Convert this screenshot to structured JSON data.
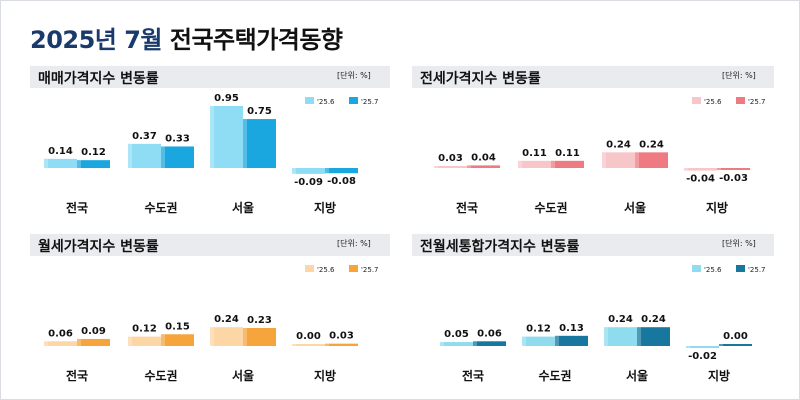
{
  "page": {
    "title_main": "2025년 7월",
    "title_rest": "전국주택가격동향"
  },
  "chart_data": [
    {
      "type": "bar",
      "title": "매매가격지수 변동률",
      "unit": "[단위: %]",
      "categories": [
        "전국",
        "수도권",
        "서울",
        "지방"
      ],
      "series": [
        {
          "name": "'25.6",
          "values": [
            0.14,
            0.37,
            0.95,
            -0.09
          ],
          "color": "#8fdcf5"
        },
        {
          "name": "'25.7",
          "values": [
            0.12,
            0.33,
            0.75,
            -0.08
          ],
          "color": "#1aa7e0"
        }
      ],
      "value_labels": [
        [
          "0.14",
          "0.37",
          "0.95",
          "-0.09"
        ],
        [
          "0.12",
          "0.33",
          "0.75",
          "-0.08"
        ]
      ],
      "scale_max": 0.95
    },
    {
      "type": "bar",
      "title": "전세가격지수 변동률",
      "unit": "[단위: %]",
      "categories": [
        "전국",
        "수도권",
        "서울",
        "지방"
      ],
      "series": [
        {
          "name": "'25.6",
          "values": [
            0.03,
            0.11,
            0.24,
            -0.04
          ],
          "color": "#f6c6c9"
        },
        {
          "name": "'25.7",
          "values": [
            0.04,
            0.11,
            0.24,
            -0.03
          ],
          "color": "#ee7b82"
        }
      ],
      "value_labels": [
        [
          "0.03",
          "0.11",
          "0.24",
          "-0.04"
        ],
        [
          "0.04",
          "0.11",
          "0.24",
          "-0.03"
        ]
      ],
      "scale_max": 0.95
    },
    {
      "type": "bar",
      "title": "월세가격지수 변동률",
      "unit": "[단위: %]",
      "categories": [
        "전국",
        "수도권",
        "서울",
        "지방"
      ],
      "series": [
        {
          "name": "'25.6",
          "values": [
            0.06,
            0.12,
            0.24,
            0.0
          ],
          "color": "#fcd6a4"
        },
        {
          "name": "'25.7",
          "values": [
            0.09,
            0.15,
            0.23,
            0.03
          ],
          "color": "#f6a53c"
        }
      ],
      "value_labels": [
        [
          "0.06",
          "0.12",
          "0.24",
          "0.00"
        ],
        [
          "0.09",
          "0.15",
          "0.23",
          "0.03"
        ]
      ],
      "scale_max": 0.6
    },
    {
      "type": "bar",
      "title": "전월세통합가격지수 변동률",
      "unit": "[단위: %]",
      "categories": [
        "전국",
        "수도권",
        "서울",
        "지방"
      ],
      "series": [
        {
          "name": "'25.6",
          "values": [
            0.05,
            0.12,
            0.24,
            -0.02
          ],
          "color": "#8fdcef"
        },
        {
          "name": "'25.7",
          "values": [
            0.06,
            0.13,
            0.24,
            0.0
          ],
          "color": "#17779f"
        }
      ],
      "value_labels": [
        [
          "0.05",
          "0.12",
          "0.24",
          "-0.02"
        ],
        [
          "0.06",
          "0.13",
          "0.24",
          "0.00"
        ]
      ],
      "scale_max": 0.6
    }
  ]
}
